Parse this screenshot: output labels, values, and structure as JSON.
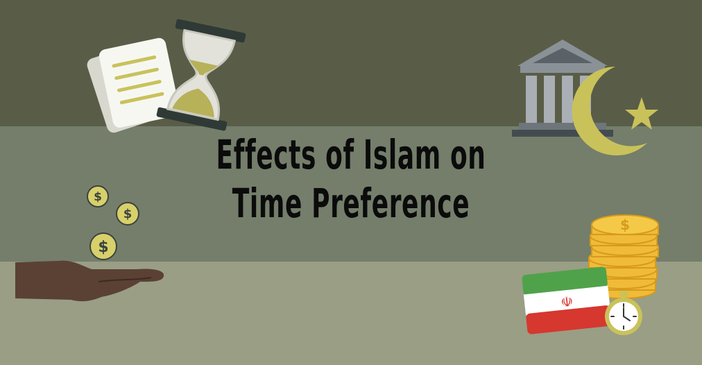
{
  "title": {
    "line1": "Effects of Islam on",
    "line2": "Time Preference"
  },
  "colors": {
    "band_top": "#595d47",
    "band_middle": "#747e6b",
    "band_bottom": "#999e85",
    "title": "#0b0b0b",
    "accent_gold": "#c9c25b",
    "coin": "#f2c23c"
  },
  "icons": {
    "paper_stack": "document-icon",
    "hourglass": "hourglass-icon",
    "bank": "bank-building-icon",
    "crescent": "crescent-star-icon",
    "coins_falling": "dollar-coin-icon",
    "hand": "open-hand-icon",
    "coin_stack": "coin-stack-icon",
    "flag": "iran-flag-icon",
    "stopwatch": "stopwatch-icon"
  }
}
